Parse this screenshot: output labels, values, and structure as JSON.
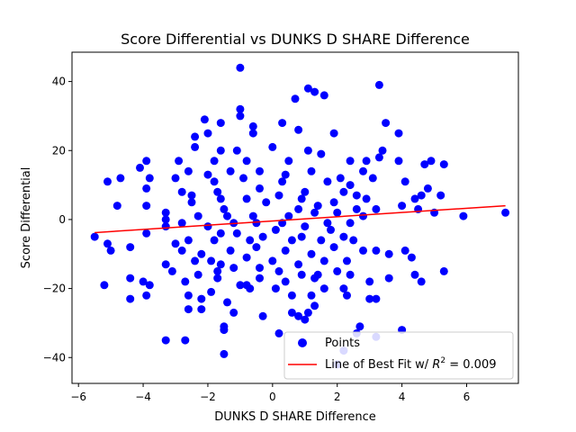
{
  "chart_data": {
    "type": "scatter",
    "title": "Score Differential vs DUNKS D SHARE Difference",
    "xlabel": "DUNKS D SHARE Difference",
    "ylabel": "Score Differential",
    "xlim": [
      -6.2,
      7.6
    ],
    "ylim": [
      -47.5,
      48.5
    ],
    "xticks": [
      -6,
      -4,
      -2,
      0,
      2,
      4,
      6
    ],
    "yticks": [
      -40,
      -20,
      0,
      20,
      40
    ],
    "xtick_labels": [
      "−6",
      "−4",
      "−2",
      "0",
      "2",
      "4",
      "6"
    ],
    "ytick_labels": [
      "−40",
      "−20",
      "0",
      "20",
      "40"
    ],
    "grid": false,
    "legend_position": "lower-right",
    "colors": {
      "points": "#0000ff",
      "fit_line": "#ff0000"
    },
    "series": [
      {
        "name": "Points",
        "kind": "scatter",
        "points": [
          [
            -1.0,
            44
          ],
          [
            3.3,
            39
          ],
          [
            1.1,
            38
          ],
          [
            0.7,
            35
          ],
          [
            1.6,
            36
          ],
          [
            1.3,
            37
          ],
          [
            -1.0,
            32
          ],
          [
            -1.0,
            30
          ],
          [
            3.5,
            28
          ],
          [
            0.3,
            28
          ],
          [
            -1.6,
            28
          ],
          [
            -2.1,
            29
          ],
          [
            -0.6,
            27
          ],
          [
            0.8,
            26
          ],
          [
            3.9,
            25
          ],
          [
            1.9,
            25
          ],
          [
            -2.4,
            24
          ],
          [
            -2.0,
            25
          ],
          [
            -0.6,
            25
          ],
          [
            3.4,
            20
          ],
          [
            3.3,
            18
          ],
          [
            1.5,
            19
          ],
          [
            1.1,
            20
          ],
          [
            0.0,
            21
          ],
          [
            -1.1,
            20
          ],
          [
            -1.6,
            20
          ],
          [
            -2.4,
            21
          ],
          [
            -3.9,
            17
          ],
          [
            -4.1,
            15
          ],
          [
            -4.7,
            12
          ],
          [
            -5.1,
            11
          ],
          [
            -3.8,
            12
          ],
          [
            -2.9,
            17
          ],
          [
            -1.8,
            17
          ],
          [
            -0.8,
            17
          ],
          [
            0.5,
            17
          ],
          [
            2.4,
            17
          ],
          [
            2.9,
            17
          ],
          [
            3.9,
            17
          ],
          [
            4.9,
            17
          ],
          [
            4.7,
            16
          ],
          [
            5.3,
            16
          ],
          [
            4.1,
            11
          ],
          [
            4.8,
            9
          ],
          [
            5.2,
            7
          ],
          [
            4.6,
            7
          ],
          [
            4.4,
            6
          ],
          [
            2.6,
            7
          ],
          [
            2.2,
            8
          ],
          [
            1.0,
            8
          ],
          [
            -0.4,
            9
          ],
          [
            -1.7,
            8
          ],
          [
            -2.8,
            8
          ],
          [
            -3.9,
            9
          ],
          [
            -4.8,
            4
          ],
          [
            -3.9,
            4
          ],
          [
            -3.3,
            2
          ],
          [
            -2.5,
            5
          ],
          [
            -1.5,
            3
          ],
          [
            -0.2,
            5
          ],
          [
            0.8,
            3
          ],
          [
            1.4,
            4
          ],
          [
            2.6,
            3
          ],
          [
            3.2,
            3
          ],
          [
            4.0,
            4
          ],
          [
            4.5,
            3
          ],
          [
            5.0,
            2
          ],
          [
            5.9,
            1
          ],
          [
            7.2,
            2
          ],
          [
            -5.5,
            -5
          ],
          [
            -5.1,
            -7
          ],
          [
            -5.0,
            -9
          ],
          [
            -4.4,
            -8
          ],
          [
            -3.9,
            -4
          ],
          [
            -3.3,
            -2
          ],
          [
            -2.6,
            -6
          ],
          [
            -1.6,
            -4
          ],
          [
            -0.7,
            -6
          ],
          [
            0.1,
            -3
          ],
          [
            0.9,
            -5
          ],
          [
            1.8,
            -3
          ],
          [
            2.5,
            -6
          ],
          [
            3.2,
            -9
          ],
          [
            3.6,
            -10
          ],
          [
            4.1,
            -9
          ],
          [
            4.3,
            -11
          ],
          [
            -4.4,
            -17
          ],
          [
            -4.4,
            -23
          ],
          [
            -4.0,
            -18
          ],
          [
            -3.9,
            -22
          ],
          [
            -3.8,
            -19
          ],
          [
            -3.3,
            -13
          ],
          [
            -3.1,
            -15
          ],
          [
            -2.7,
            -18
          ],
          [
            -2.3,
            -16
          ],
          [
            -1.7,
            -15
          ],
          [
            -1.2,
            -14
          ],
          [
            -0.4,
            -14
          ],
          [
            0.2,
            -15
          ],
          [
            0.9,
            -16
          ],
          [
            1.4,
            -16
          ],
          [
            2.0,
            -15
          ],
          [
            2.4,
            -16
          ],
          [
            3.0,
            -18
          ],
          [
            3.6,
            -17
          ],
          [
            4.4,
            -16
          ],
          [
            4.6,
            -18
          ],
          [
            5.3,
            -15
          ],
          [
            -5.2,
            -19
          ],
          [
            -2.6,
            -26
          ],
          [
            -2.2,
            -26
          ],
          [
            -2.2,
            -23
          ],
          [
            -1.4,
            -24
          ],
          [
            -1.2,
            -27
          ],
          [
            -0.3,
            -28
          ],
          [
            0.8,
            -28
          ],
          [
            1.1,
            -27
          ],
          [
            1.3,
            -25
          ],
          [
            2.3,
            -22
          ],
          [
            2.2,
            -20
          ],
          [
            3.2,
            -23
          ],
          [
            3.0,
            -23
          ],
          [
            -0.8,
            -19
          ],
          [
            -1.0,
            -19
          ],
          [
            0.1,
            -20
          ],
          [
            0.6,
            -22
          ],
          [
            1.6,
            -20
          ],
          [
            2.7,
            -31
          ],
          [
            0.2,
            -33
          ],
          [
            -1.5,
            -31
          ],
          [
            -1.5,
            -32
          ],
          [
            -3.3,
            -35
          ],
          [
            -2.7,
            -35
          ],
          [
            -1.5,
            -39
          ],
          [
            4.0,
            -32
          ],
          [
            2.6,
            -33
          ],
          [
            3.2,
            -34
          ],
          [
            2.0,
            -42
          ],
          [
            2.2,
            -38
          ],
          [
            1.0,
            -29
          ],
          [
            0.6,
            -27
          ],
          [
            -0.7,
            -20
          ],
          [
            -1.9,
            -12
          ],
          [
            -2.2,
            -10
          ],
          [
            -2.8,
            -9
          ],
          [
            -3.0,
            -7
          ],
          [
            -1.3,
            -9
          ],
          [
            -0.5,
            -8
          ],
          [
            0.4,
            -9
          ],
          [
            1.2,
            -10
          ],
          [
            1.9,
            -8
          ],
          [
            2.8,
            -9
          ],
          [
            -2.0,
            13
          ],
          [
            -1.3,
            14
          ],
          [
            -0.4,
            14
          ],
          [
            0.4,
            13
          ],
          [
            1.2,
            14
          ],
          [
            2.1,
            12
          ],
          [
            2.8,
            14
          ],
          [
            3.1,
            12
          ],
          [
            -3.0,
            12
          ],
          [
            -2.6,
            14
          ],
          [
            -1.8,
            11
          ],
          [
            -0.9,
            12
          ],
          [
            0.3,
            11
          ],
          [
            1.7,
            11
          ],
          [
            2.4,
            10
          ],
          [
            -2.5,
            7
          ],
          [
            -1.6,
            6
          ],
          [
            -0.8,
            6
          ],
          [
            0.2,
            7
          ],
          [
            0.9,
            6
          ],
          [
            1.9,
            5
          ],
          [
            2.9,
            6
          ],
          [
            -3.3,
            0
          ],
          [
            -2.8,
            -1
          ],
          [
            -2.0,
            -2
          ],
          [
            -1.2,
            -1
          ],
          [
            -0.5,
            -1
          ],
          [
            0.3,
            -1
          ],
          [
            1.0,
            -2
          ],
          [
            1.7,
            -1
          ],
          [
            2.4,
            -1
          ],
          [
            -2.3,
            1
          ],
          [
            -1.4,
            1
          ],
          [
            -0.6,
            1
          ],
          [
            0.5,
            1
          ],
          [
            1.3,
            2
          ],
          [
            2.0,
            2
          ],
          [
            2.8,
            1
          ],
          [
            -1.8,
            -6
          ],
          [
            -1.1,
            -4
          ],
          [
            -0.3,
            -5
          ],
          [
            0.6,
            -6
          ],
          [
            1.5,
            -6
          ],
          [
            2.2,
            -5
          ],
          [
            -2.4,
            -12
          ],
          [
            -1.6,
            -13
          ],
          [
            -0.8,
            -11
          ],
          [
            0.0,
            -12
          ],
          [
            0.8,
            -13
          ],
          [
            1.6,
            -12
          ],
          [
            2.3,
            -12
          ],
          [
            -1.7,
            -17
          ],
          [
            -0.4,
            -17
          ],
          [
            0.4,
            -18
          ],
          [
            1.3,
            -17
          ],
          [
            -2.6,
            -22
          ],
          [
            -1.9,
            -21
          ],
          [
            1.2,
            -22
          ]
        ]
      },
      {
        "name": "Line of Best Fit w/ ",
        "kind": "line",
        "name_math": "R",
        "name_sup": "2",
        "name_suffix": " = 0.009",
        "points": [
          [
            -5.5,
            -3.8
          ],
          [
            7.2,
            4.0
          ]
        ]
      }
    ]
  }
}
